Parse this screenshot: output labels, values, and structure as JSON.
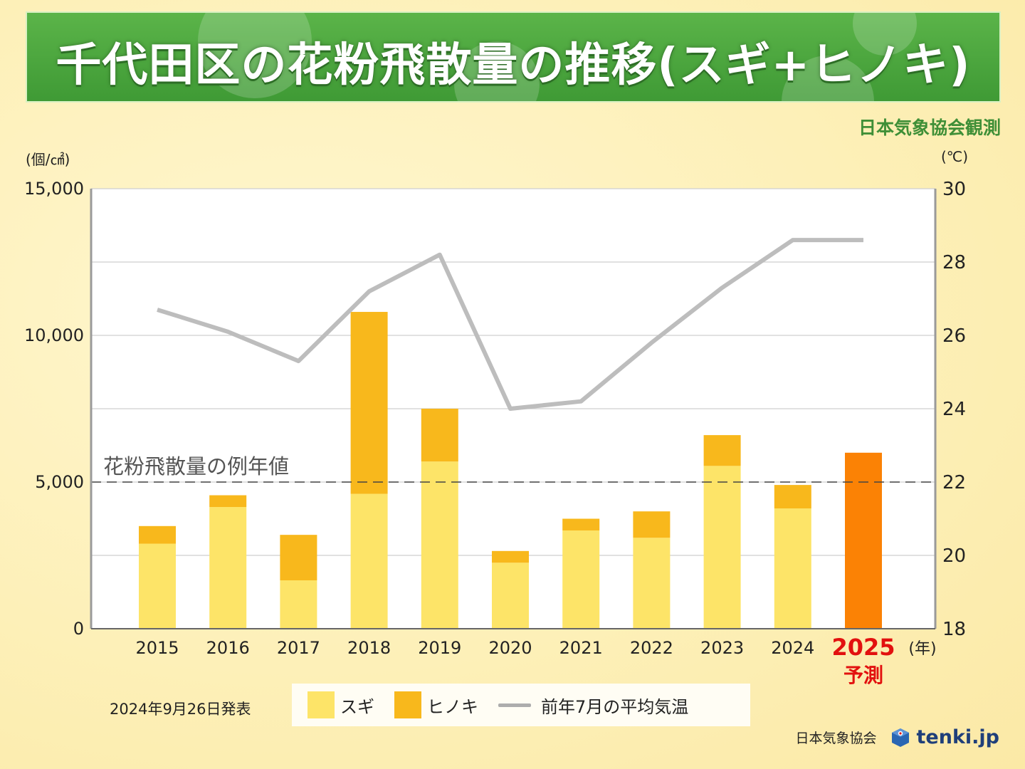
{
  "header": {
    "title": "千代田区の花粉飛散量の推移(スギ+ヒノキ)",
    "source": "日本気象協会観測"
  },
  "issue_date": "2024年9月26日発表",
  "footer": {
    "org": "日本気象協会",
    "brand": "tenki.jp"
  },
  "colors": {
    "sugi": "#fde468",
    "hinoki": "#f8b81c",
    "forecast": "#fb8205",
    "temp_line": "#bdbdbd",
    "forecast_label": "#e2110f",
    "banner_green": "#4ca83e"
  },
  "chart_data": {
    "type": "bar",
    "stacked": true,
    "categories": [
      "2015",
      "2016",
      "2017",
      "2018",
      "2019",
      "2020",
      "2021",
      "2022",
      "2023",
      "2024",
      "2025"
    ],
    "forecast_category": "2025",
    "forecast_label": "予測",
    "x_unit": "(年)",
    "y_left": {
      "unit": "(個/㎠)",
      "ylim": [
        0,
        15000
      ],
      "ticks": [
        "0",
        "5,000",
        "10,000",
        "15,000"
      ],
      "tick_values": [
        0,
        5000,
        10000,
        15000
      ]
    },
    "y_right": {
      "unit": "(℃)",
      "ylim": [
        18,
        30
      ],
      "ticks": [
        "18",
        "20",
        "22",
        "24",
        "26",
        "28",
        "30"
      ],
      "tick_values": [
        18,
        20,
        22,
        24,
        26,
        28,
        30
      ]
    },
    "grid": true,
    "series": [
      {
        "name": "スギ",
        "type": "bar",
        "axis": "left",
        "values": [
          2900,
          4150,
          1650,
          4600,
          5700,
          2250,
          3350,
          3100,
          5550,
          4100,
          null
        ]
      },
      {
        "name": "ヒノキ",
        "type": "bar",
        "axis": "left",
        "values": [
          600,
          400,
          1550,
          6200,
          1800,
          400,
          400,
          900,
          1050,
          800,
          null
        ]
      },
      {
        "name": "",
        "type": "bar",
        "axis": "left",
        "values": [
          null,
          null,
          null,
          null,
          null,
          null,
          null,
          null,
          null,
          null,
          6000
        ]
      },
      {
        "name": "前年7月の平均気温",
        "type": "line",
        "axis": "right",
        "values": [
          26.7,
          26.1,
          25.3,
          27.2,
          28.2,
          24.0,
          24.2,
          25.8,
          27.3,
          28.6,
          28.6
        ]
      }
    ],
    "reference_line": {
      "label": "花粉飛散量の例年値",
      "value": 5000
    },
    "legend_position": "bottom"
  }
}
